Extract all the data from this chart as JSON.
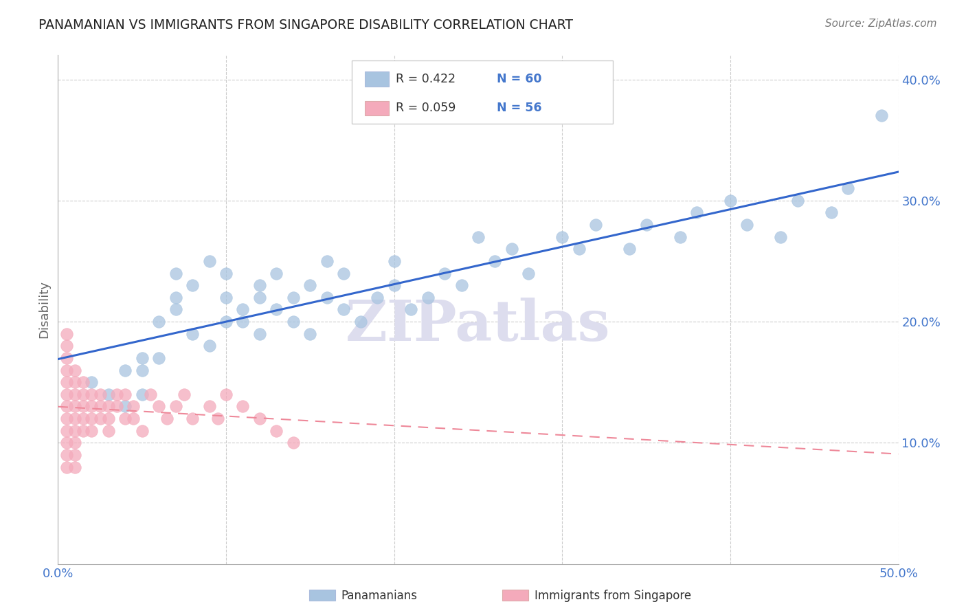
{
  "title": "PANAMANIAN VS IMMIGRANTS FROM SINGAPORE DISABILITY CORRELATION CHART",
  "source": "Source: ZipAtlas.com",
  "ylabel": "Disability",
  "xlim": [
    0.0,
    0.5
  ],
  "ylim": [
    0.0,
    0.42
  ],
  "legend_r1": "R = 0.422",
  "legend_n1": "N = 60",
  "legend_r2": "R = 0.059",
  "legend_n2": "N = 56",
  "legend_label1": "Panamanians",
  "legend_label2": "Immigrants from Singapore",
  "blue_scatter_color": "#A8C4E0",
  "pink_scatter_color": "#F4AABB",
  "blue_line_color": "#3366CC",
  "pink_line_color": "#EE8899",
  "axis_color": "#4477CC",
  "grid_color": "#CCCCCC",
  "watermark": "ZIPatlas",
  "watermark_color": "#DDDDEE",
  "pan_x": [
    0.02,
    0.03,
    0.04,
    0.04,
    0.05,
    0.05,
    0.05,
    0.06,
    0.06,
    0.07,
    0.07,
    0.07,
    0.08,
    0.08,
    0.09,
    0.09,
    0.1,
    0.1,
    0.1,
    0.11,
    0.11,
    0.12,
    0.12,
    0.12,
    0.13,
    0.13,
    0.14,
    0.14,
    0.15,
    0.15,
    0.16,
    0.16,
    0.17,
    0.17,
    0.18,
    0.19,
    0.2,
    0.2,
    0.21,
    0.22,
    0.23,
    0.24,
    0.25,
    0.26,
    0.27,
    0.28,
    0.3,
    0.31,
    0.32,
    0.34,
    0.35,
    0.37,
    0.38,
    0.4,
    0.41,
    0.43,
    0.44,
    0.46,
    0.47,
    0.49
  ],
  "pan_y": [
    0.15,
    0.14,
    0.16,
    0.13,
    0.17,
    0.14,
    0.16,
    0.2,
    0.17,
    0.22,
    0.24,
    0.21,
    0.19,
    0.23,
    0.18,
    0.25,
    0.2,
    0.22,
    0.24,
    0.21,
    0.2,
    0.23,
    0.19,
    0.22,
    0.24,
    0.21,
    0.22,
    0.2,
    0.23,
    0.19,
    0.25,
    0.22,
    0.21,
    0.24,
    0.2,
    0.22,
    0.23,
    0.25,
    0.21,
    0.22,
    0.24,
    0.23,
    0.27,
    0.25,
    0.26,
    0.24,
    0.27,
    0.26,
    0.28,
    0.26,
    0.28,
    0.27,
    0.29,
    0.3,
    0.28,
    0.27,
    0.3,
    0.29,
    0.31,
    0.37
  ],
  "sing_x": [
    0.005,
    0.005,
    0.005,
    0.005,
    0.005,
    0.005,
    0.005,
    0.005,
    0.005,
    0.005,
    0.005,
    0.005,
    0.01,
    0.01,
    0.01,
    0.01,
    0.01,
    0.01,
    0.01,
    0.01,
    0.01,
    0.015,
    0.015,
    0.015,
    0.015,
    0.015,
    0.02,
    0.02,
    0.02,
    0.02,
    0.025,
    0.025,
    0.025,
    0.03,
    0.03,
    0.03,
    0.035,
    0.035,
    0.04,
    0.04,
    0.045,
    0.045,
    0.05,
    0.055,
    0.06,
    0.065,
    0.07,
    0.075,
    0.08,
    0.09,
    0.095,
    0.1,
    0.11,
    0.12,
    0.13,
    0.14
  ],
  "sing_y": [
    0.14,
    0.13,
    0.12,
    0.15,
    0.11,
    0.1,
    0.09,
    0.08,
    0.16,
    0.17,
    0.18,
    0.19,
    0.13,
    0.14,
    0.12,
    0.11,
    0.15,
    0.16,
    0.1,
    0.09,
    0.08,
    0.14,
    0.13,
    0.12,
    0.11,
    0.15,
    0.13,
    0.12,
    0.14,
    0.11,
    0.13,
    0.12,
    0.14,
    0.13,
    0.12,
    0.11,
    0.14,
    0.13,
    0.12,
    0.14,
    0.13,
    0.12,
    0.11,
    0.14,
    0.13,
    0.12,
    0.13,
    0.14,
    0.12,
    0.13,
    0.12,
    0.14,
    0.13,
    0.12,
    0.11,
    0.1
  ]
}
